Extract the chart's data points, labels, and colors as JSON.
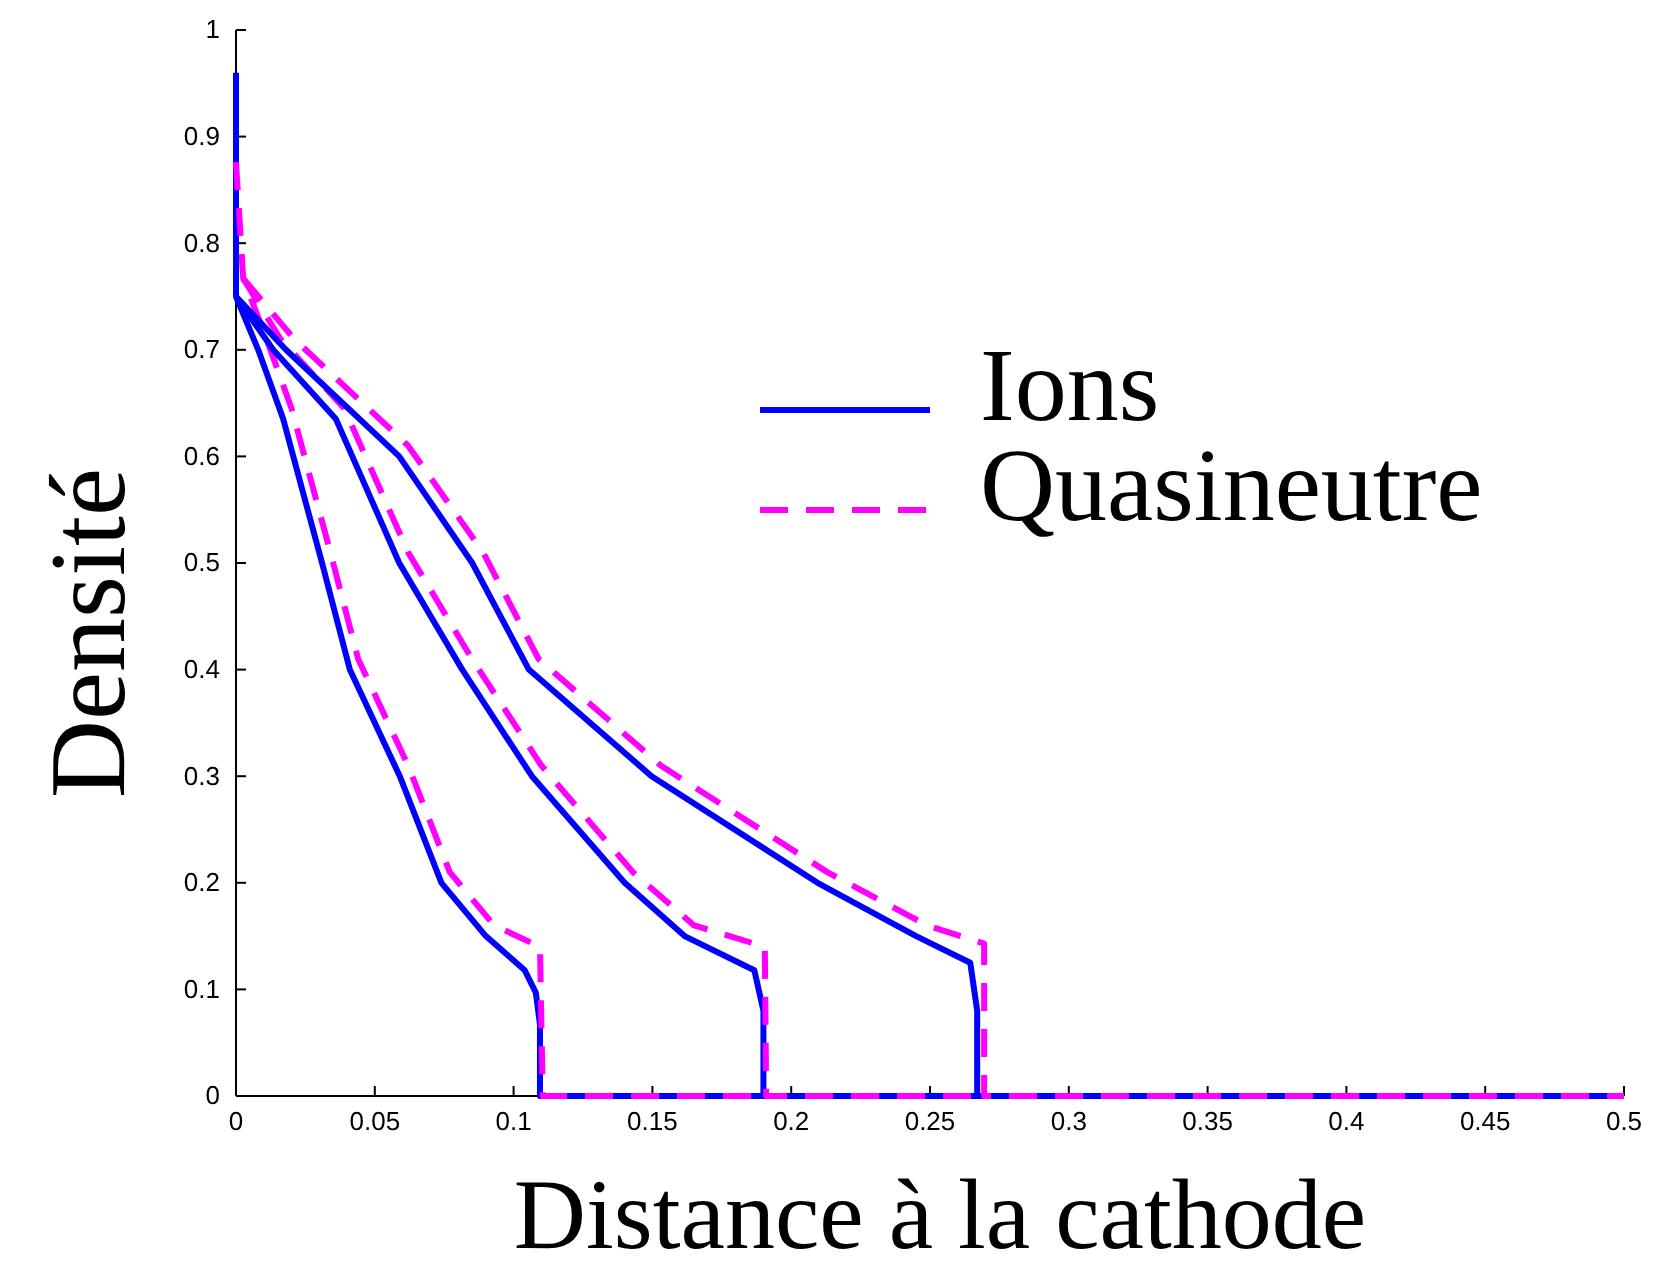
{
  "chart_data": {
    "type": "line",
    "xlabel": "Distance à la cathode",
    "ylabel": "Densité",
    "xlim": [
      0,
      0.5
    ],
    "ylim": [
      0,
      1
    ],
    "xticks": [
      0,
      0.05,
      0.1,
      0.15,
      0.2,
      0.25,
      0.3,
      0.35,
      0.4,
      0.45,
      0.5
    ],
    "yticks": [
      0,
      0.1,
      0.2,
      0.3,
      0.4,
      0.5,
      0.6,
      0.7,
      0.8,
      0.9,
      1
    ],
    "grid": false,
    "legend": "top right",
    "marker": "none",
    "series": [
      {
        "name": "Ions",
        "color": "#0000ff",
        "line_style": "solid",
        "x": [
          0,
          0,
          0.008,
          0.017,
          0.031,
          0.041,
          0.059,
          0.074,
          0.09,
          0.104,
          0.108,
          0.1095,
          0.1095,
          0.5
        ],
        "values": [
          0.96,
          0.75,
          0.7,
          0.635,
          0.5,
          0.4,
          0.3,
          0.2,
          0.15,
          0.118,
          0.097,
          0.067,
          0,
          0
        ]
      },
      {
        "name": "Quasineutre",
        "color": "#ff00ff",
        "line_style": "dashed",
        "x": [
          0,
          0.0026,
          0.011,
          0.02,
          0.034,
          0.044,
          0.062,
          0.077,
          0.093,
          0.1095,
          0.1105,
          0.5
        ],
        "values": [
          0.876,
          0.767,
          0.71,
          0.645,
          0.51,
          0.41,
          0.31,
          0.21,
          0.16,
          0.14,
          0,
          0
        ]
      },
      {
        "color": "#0000ff",
        "line_style": "solid",
        "x": [
          0,
          0.0134,
          0.036,
          0.0588,
          0.0815,
          0.1066,
          0.14,
          0.1616,
          0.1867,
          0.19,
          0.19,
          0.5
        ],
        "values": [
          0.75,
          0.7,
          0.635,
          0.5,
          0.4,
          0.3,
          0.2,
          0.15,
          0.118,
          0.08,
          0,
          0
        ]
      },
      {
        "color": "#ff00ff",
        "line_style": "dashed",
        "x": [
          0.0026,
          0.016,
          0.039,
          0.062,
          0.085,
          0.11,
          0.143,
          0.165,
          0.1905,
          0.191,
          0.5
        ],
        "values": [
          0.767,
          0.71,
          0.645,
          0.51,
          0.41,
          0.31,
          0.21,
          0.16,
          0.14,
          0,
          0
        ]
      },
      {
        "color": "#0000ff",
        "line_style": "solid",
        "x": [
          0,
          0.018,
          0.0588,
          0.0851,
          0.1055,
          0.1497,
          0.2095,
          0.245,
          0.2645,
          0.267,
          0.267,
          0.5
        ],
        "values": [
          0.75,
          0.7,
          0.6,
          0.5,
          0.4,
          0.3,
          0.2,
          0.15,
          0.125,
          0.08,
          0,
          0
        ]
      },
      {
        "color": "#ff00ff",
        "line_style": "dashed",
        "x": [
          0.0026,
          0.021,
          0.062,
          0.089,
          0.109,
          0.153,
          0.213,
          0.249,
          0.2695,
          0.2695,
          0.5
        ],
        "values": [
          0.767,
          0.71,
          0.61,
          0.51,
          0.41,
          0.31,
          0.21,
          0.16,
          0.143,
          0,
          0
        ]
      }
    ]
  }
}
